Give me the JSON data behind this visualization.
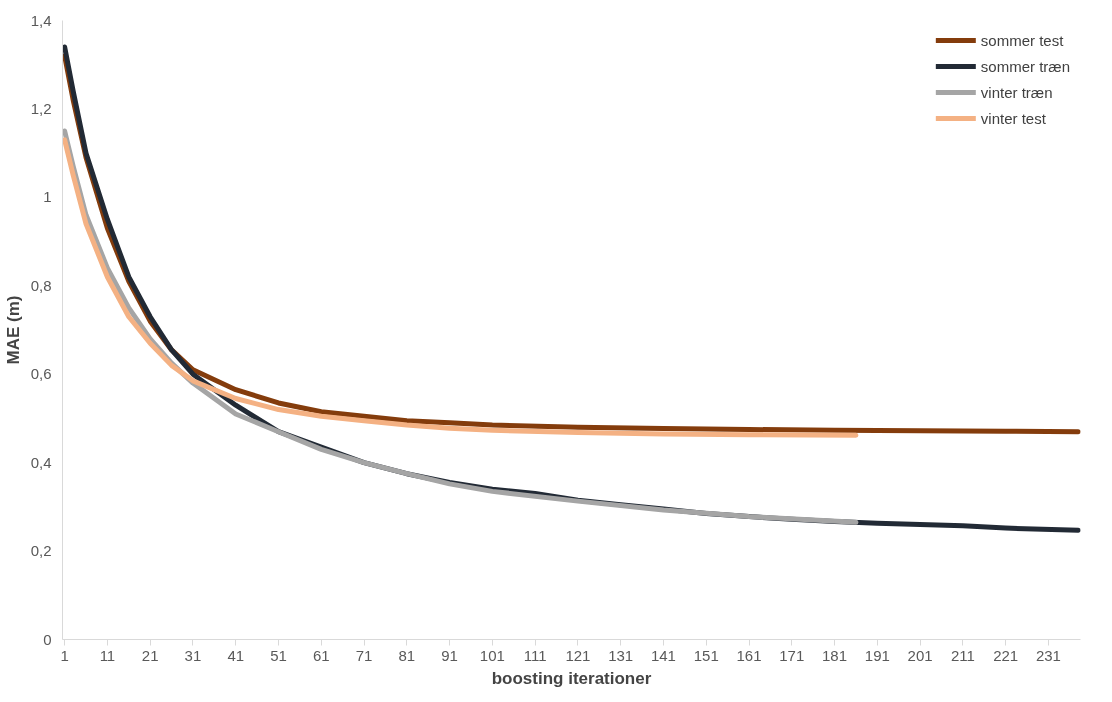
{
  "chart_data": {
    "type": "line",
    "xlabel": "boosting iterationer",
    "ylabel": "MAE (m)",
    "xlim": [
      0.5,
      238.5
    ],
    "xticks": [
      1,
      11,
      21,
      31,
      41,
      51,
      61,
      71,
      81,
      91,
      101,
      111,
      121,
      131,
      141,
      151,
      161,
      171,
      181,
      191,
      201,
      211,
      221,
      231
    ],
    "ylim": [
      0,
      1.4
    ],
    "yticks": [
      0,
      {
        "value": 0.2,
        "label": "0,2"
      },
      {
        "value": 0.4,
        "label": "0,4"
      },
      {
        "value": 0.6,
        "label": "0,6"
      },
      {
        "value": 0.8,
        "label": "0,8"
      },
      1,
      {
        "value": 1.2,
        "label": "1,2"
      },
      {
        "value": 1.4,
        "label": "1,4"
      }
    ],
    "grid": false,
    "legend": "top right",
    "line_style": "solid",
    "marker": "none",
    "series": [
      {
        "name": "sommer test",
        "color": "#843c0c",
        "x": [
          1,
          3,
          6,
          11,
          16,
          21,
          26,
          31,
          41,
          51,
          61,
          71,
          81,
          91,
          101,
          121,
          141,
          161,
          181,
          201,
          221,
          238
        ],
        "values": [
          1.32,
          1.22,
          1.09,
          0.93,
          0.81,
          0.72,
          0.655,
          0.61,
          0.565,
          0.535,
          0.515,
          0.505,
          0.495,
          0.49,
          0.485,
          0.48,
          0.477,
          0.475,
          0.473,
          0.472,
          0.471,
          0.47
        ]
      },
      {
        "name": "sommer træn",
        "color": "#222a35",
        "x": [
          1,
          3,
          6,
          11,
          16,
          21,
          26,
          31,
          41,
          51,
          61,
          71,
          81,
          91,
          101,
          111,
          121,
          131,
          141,
          151,
          161,
          171,
          181,
          191,
          201,
          211,
          221,
          238
        ],
        "values": [
          1.34,
          1.24,
          1.1,
          0.95,
          0.82,
          0.73,
          0.655,
          0.6,
          0.53,
          0.47,
          0.435,
          0.4,
          0.375,
          0.355,
          0.34,
          0.33,
          0.315,
          0.305,
          0.295,
          0.285,
          0.278,
          0.272,
          0.267,
          0.263,
          0.26,
          0.257,
          0.252,
          0.247
        ]
      },
      {
        "name": "vinter træn",
        "color": "#a5a5a5",
        "x": [
          1,
          3,
          6,
          11,
          16,
          21,
          26,
          31,
          41,
          51,
          61,
          71,
          81,
          91,
          101,
          121,
          141,
          161,
          186
        ],
        "values": [
          1.15,
          1.07,
          0.96,
          0.84,
          0.75,
          0.68,
          0.625,
          0.58,
          0.51,
          0.47,
          0.43,
          0.4,
          0.375,
          0.352,
          0.335,
          0.313,
          0.293,
          0.278,
          0.265
        ]
      },
      {
        "name": "vinter test",
        "color": "#f4b183",
        "x": [
          1,
          3,
          6,
          11,
          16,
          21,
          26,
          31,
          41,
          51,
          61,
          71,
          81,
          91,
          101,
          121,
          141,
          161,
          186
        ],
        "values": [
          1.13,
          1.05,
          0.94,
          0.82,
          0.73,
          0.67,
          0.62,
          0.585,
          0.545,
          0.52,
          0.505,
          0.495,
          0.485,
          0.478,
          0.473,
          0.468,
          0.465,
          0.463,
          0.462
        ]
      }
    ]
  }
}
